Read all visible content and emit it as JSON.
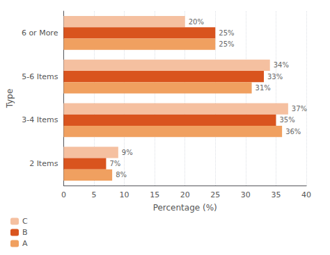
{
  "chart_data": {
    "type": "bar",
    "orientation": "horizontal",
    "categories": [
      "2 Items",
      "3-4 Items",
      "5-6 Items",
      "6 or More"
    ],
    "series": [
      {
        "name": "C",
        "color": "#f5c0a0",
        "values": [
          9,
          37,
          34,
          20
        ],
        "value_labels": [
          "9%",
          "37%",
          "34%",
          "20%"
        ]
      },
      {
        "name": "B",
        "color": "#d9541e",
        "values": [
          7,
          35,
          33,
          25
        ],
        "value_labels": [
          "7%",
          "35%",
          "33%",
          "25%"
        ]
      },
      {
        "name": "A",
        "color": "#f0a060",
        "values": [
          8,
          36,
          31,
          25
        ],
        "value_labels": [
          "8%",
          "36%",
          "31%",
          "25%"
        ]
      }
    ],
    "xlabel": "Percentage (%)",
    "ylabel": "Type",
    "xlim": [
      0,
      40
    ],
    "xticks": [
      0,
      5,
      10,
      15,
      20,
      25,
      30,
      35,
      40
    ],
    "grid": true,
    "legend": "lower left",
    "data_labels": true
  }
}
